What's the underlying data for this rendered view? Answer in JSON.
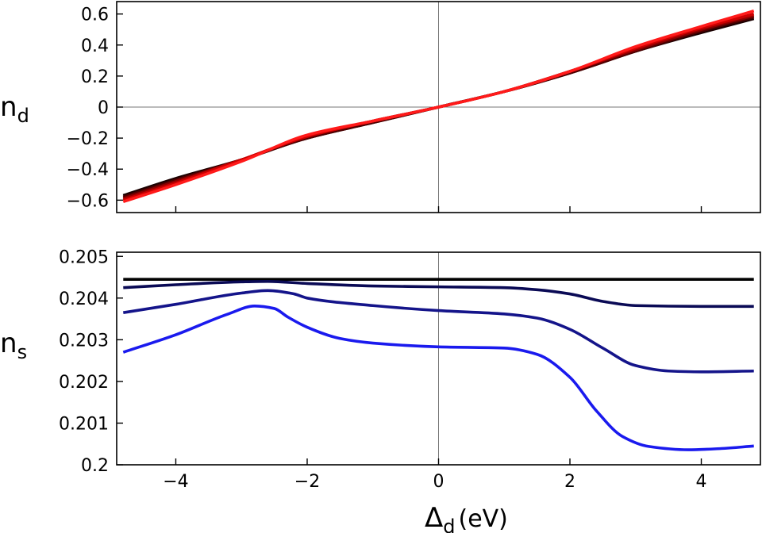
{
  "chart_data": [
    {
      "type": "line",
      "ylabel": "n",
      "ylabel_sub": "d",
      "xlim": [
        -4.9,
        4.9
      ],
      "ylim": [
        -0.68,
        0.68
      ],
      "yticks": [
        -0.6,
        -0.4,
        -0.2,
        0,
        0.2,
        0.4,
        0.6
      ],
      "ytick_labels": [
        "−0.6",
        "−0.4",
        "−0.2",
        "0",
        "0.2",
        "0.4",
        "0.6"
      ],
      "xticks": [
        -4,
        -2,
        0,
        2,
        4
      ],
      "reference_lines": {
        "x": 0,
        "y": 0
      },
      "grid": false,
      "series": [
        {
          "color": "#1a0000",
          "x": [
            -4.8,
            -4,
            -3,
            -2,
            -1,
            0,
            1,
            2,
            3,
            4,
            4.8
          ],
          "y": [
            -0.57,
            -0.46,
            -0.34,
            -0.2,
            -0.1,
            0.0,
            0.1,
            0.22,
            0.36,
            0.48,
            0.57
          ]
        },
        {
          "color": "#4d0000",
          "x": [
            -4.8,
            -4,
            -3,
            -2,
            -1,
            0,
            1,
            2,
            3,
            4,
            4.8
          ],
          "y": [
            -0.58,
            -0.47,
            -0.34,
            -0.2,
            -0.1,
            0.0,
            0.1,
            0.22,
            0.36,
            0.49,
            0.58
          ]
        },
        {
          "color": "#8c0000",
          "x": [
            -4.8,
            -4,
            -3,
            -2,
            -1,
            0,
            1,
            2,
            3,
            4,
            4.8
          ],
          "y": [
            -0.59,
            -0.48,
            -0.34,
            -0.19,
            -0.09,
            0.0,
            0.1,
            0.23,
            0.37,
            0.5,
            0.59
          ]
        },
        {
          "color": "#cc0000",
          "x": [
            -4.8,
            -4,
            -3,
            -2,
            -1,
            0,
            1,
            2,
            3,
            4,
            4.8
          ],
          "y": [
            -0.6,
            -0.49,
            -0.34,
            -0.19,
            -0.09,
            0.0,
            0.1,
            0.23,
            0.38,
            0.51,
            0.6
          ]
        },
        {
          "color": "#ff1a1a",
          "x": [
            -4.8,
            -4,
            -3,
            -2,
            -1,
            0,
            1,
            2,
            3,
            4,
            4.8
          ],
          "y": [
            -0.61,
            -0.5,
            -0.35,
            -0.18,
            -0.09,
            0.0,
            0.1,
            0.23,
            0.39,
            0.52,
            0.62
          ]
        }
      ]
    },
    {
      "type": "line",
      "ylabel": "n",
      "ylabel_sub": "s",
      "xlabel": "Δ",
      "xlabel_sub": "d",
      "xlabel_unit": "(eV)",
      "xlim": [
        -4.9,
        4.9
      ],
      "ylim": [
        0.2,
        0.2051
      ],
      "yticks": [
        0.2,
        0.201,
        0.202,
        0.203,
        0.204,
        0.205
      ],
      "ytick_labels": [
        "0.2",
        "0.201",
        "0.202",
        "0.203",
        "0.204",
        "0.205"
      ],
      "xticks": [
        -4,
        -2,
        0,
        2,
        4
      ],
      "xtick_labels": [
        "−4",
        "−2",
        "0",
        "2",
        "4"
      ],
      "reference_lines": {
        "x": 0
      },
      "grid": false,
      "series": [
        {
          "color": "#000000",
          "x": [
            -4.8,
            -3,
            -1,
            0,
            1,
            2,
            3,
            4.8
          ],
          "y": [
            0.20445,
            0.20445,
            0.20445,
            0.20445,
            0.20445,
            0.20445,
            0.20445,
            0.20445
          ]
        },
        {
          "color": "#0a0a55",
          "x": [
            -4.8,
            -4,
            -3,
            -2.6,
            -2,
            -1,
            0,
            1,
            1.5,
            2,
            2.5,
            3,
            4,
            4.8
          ],
          "y": [
            0.20425,
            0.20432,
            0.20439,
            0.2044,
            0.20435,
            0.20429,
            0.20427,
            0.20425,
            0.2042,
            0.2041,
            0.20392,
            0.20382,
            0.2038,
            0.2038
          ]
        },
        {
          "color": "#14148a",
          "x": [
            -4.8,
            -4,
            -3,
            -2.6,
            -2.2,
            -2,
            -1,
            0,
            1,
            1.5,
            2,
            2.5,
            3,
            3.5,
            4,
            4.8
          ],
          "y": [
            0.20365,
            0.20385,
            0.20412,
            0.20418,
            0.2041,
            0.204,
            0.20382,
            0.2037,
            0.20362,
            0.20352,
            0.20325,
            0.2028,
            0.20238,
            0.20225,
            0.20223,
            0.20225
          ]
        },
        {
          "color": "#1a1aee",
          "x": [
            -4.8,
            -4,
            -3.2,
            -2.8,
            -2.5,
            -2.3,
            -2,
            -1.5,
            -1,
            0,
            1,
            1.5,
            2,
            2.4,
            2.8,
            3.2,
            3.8,
            4.3,
            4.8
          ],
          "y": [
            0.2027,
            0.20312,
            0.20362,
            0.20381,
            0.20375,
            0.20355,
            0.2033,
            0.20303,
            0.20292,
            0.20283,
            0.2028,
            0.20265,
            0.2021,
            0.2013,
            0.20068,
            0.20044,
            0.20036,
            0.20039,
            0.20045
          ]
        }
      ]
    }
  ]
}
